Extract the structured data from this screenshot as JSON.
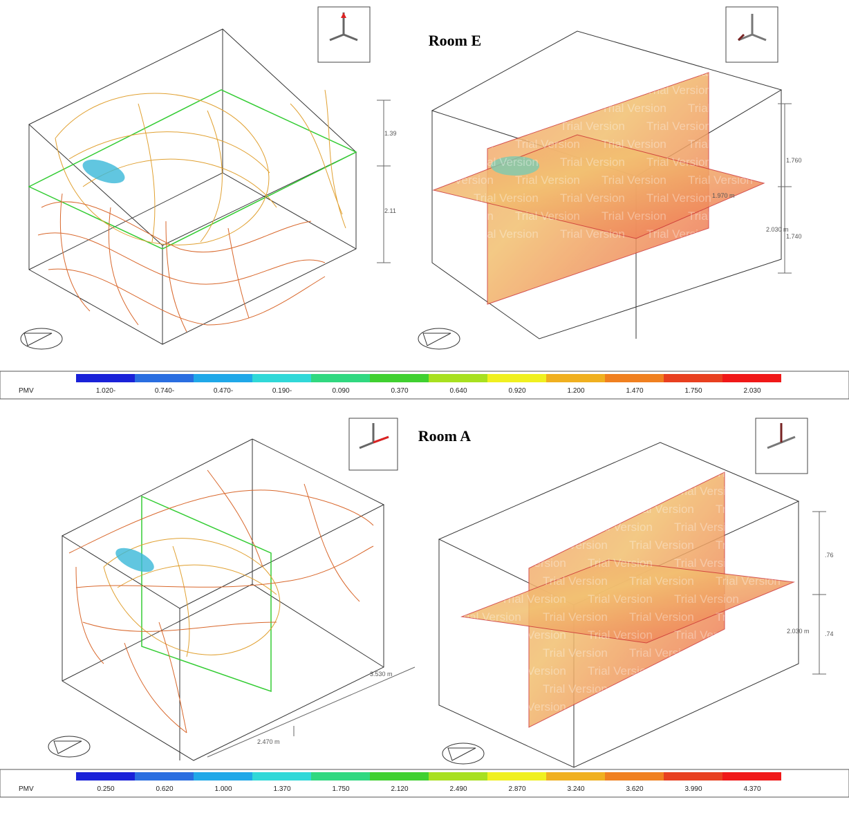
{
  "rooms": [
    {
      "title": "Room E",
      "dimensions_left": [
        "1.39",
        "2.11"
      ],
      "dimensions_right": [
        "1.760",
        "1.740",
        "2.030 m",
        "1.970 m"
      ]
    },
    {
      "title": "Room A",
      "dimensions_left": [
        "3.530 m",
        "2.470 m"
      ],
      "dimensions_right": [
        ".76",
        ".74",
        "2.030 m"
      ]
    }
  ],
  "watermark": "Trial Version",
  "legends": [
    {
      "label": "PMV",
      "ticks": [
        "1.020-",
        "0.740-",
        "0.470-",
        "0.190-",
        "0.090",
        "0.370",
        "0.640",
        "0.920",
        "1.200",
        "1.470",
        "1.750",
        "2.030"
      ]
    },
    {
      "label": "PMV",
      "ticks": [
        "0.250",
        "0.620",
        "1.000",
        "1.370",
        "1.750",
        "2.120",
        "2.490",
        "2.870",
        "3.240",
        "3.620",
        "3.990",
        "4.370"
      ]
    }
  ]
}
